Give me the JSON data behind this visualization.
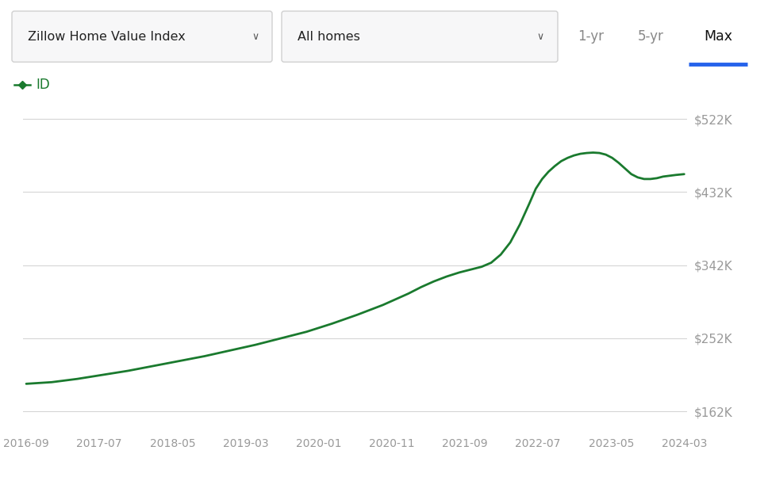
{
  "line_color": "#1a7a2e",
  "background_color": "#ffffff",
  "grid_color": "#d5d5d5",
  "x_labels": [
    "2016-09",
    "2017-07",
    "2018-05",
    "2019-03",
    "2020-01",
    "2020-11",
    "2021-09",
    "2022-07",
    "2023-05",
    "2024-03"
  ],
  "y_ticks": [
    162000,
    252000,
    342000,
    432000,
    522000
  ],
  "y_tick_labels": [
    "$162K",
    "$252K",
    "$342K",
    "$432K",
    "$522K"
  ],
  "ylim": [
    140000,
    545000
  ],
  "data": [
    [
      0,
      196000
    ],
    [
      0.4,
      198000
    ],
    [
      0.8,
      202000
    ],
    [
      1.2,
      207000
    ],
    [
      1.6,
      212000
    ],
    [
      2.0,
      218000
    ],
    [
      2.4,
      224000
    ],
    [
      2.8,
      230000
    ],
    [
      3.2,
      237000
    ],
    [
      3.6,
      244000
    ],
    [
      4.0,
      252000
    ],
    [
      4.4,
      260000
    ],
    [
      4.8,
      270000
    ],
    [
      5.2,
      281000
    ],
    [
      5.6,
      293000
    ],
    [
      6.0,
      307000
    ],
    [
      6.2,
      315000
    ],
    [
      6.4,
      322000
    ],
    [
      6.6,
      328000
    ],
    [
      6.8,
      333000
    ],
    [
      7.0,
      337000
    ],
    [
      7.15,
      340000
    ],
    [
      7.3,
      345000
    ],
    [
      7.45,
      355000
    ],
    [
      7.6,
      370000
    ],
    [
      7.75,
      392000
    ],
    [
      7.9,
      418000
    ],
    [
      8.0,
      436000
    ],
    [
      8.1,
      448000
    ],
    [
      8.2,
      457000
    ],
    [
      8.3,
      464000
    ],
    [
      8.4,
      470000
    ],
    [
      8.5,
      474000
    ],
    [
      8.6,
      477000
    ],
    [
      8.7,
      479000
    ],
    [
      8.8,
      480000
    ],
    [
      8.9,
      480500
    ],
    [
      9.0,
      480000
    ],
    [
      9.1,
      478000
    ],
    [
      9.2,
      474000
    ],
    [
      9.3,
      468000
    ],
    [
      9.4,
      461000
    ],
    [
      9.5,
      454000
    ],
    [
      9.6,
      450000
    ],
    [
      9.7,
      448000
    ],
    [
      9.8,
      448000
    ],
    [
      9.9,
      449000
    ],
    [
      10.0,
      451000
    ],
    [
      10.1,
      452000
    ],
    [
      10.2,
      453000
    ],
    [
      10.33,
      454000
    ]
  ],
  "legend_text": "ID",
  "legend_color": "#1a7a2e",
  "dropdown1_text": "Zillow Home Value Index",
  "dropdown2_text": "All homes",
  "btn_1yr": "1-yr",
  "btn_5yr": "5-yr",
  "btn_max": "Max",
  "max_underline_color": "#2563eb",
  "dropdown_border_color": "#d0d0d0",
  "dropdown_text_color": "#222222",
  "btn_text_color": "#888888",
  "max_btn_color": "#111111",
  "chevron_color": "#555555"
}
